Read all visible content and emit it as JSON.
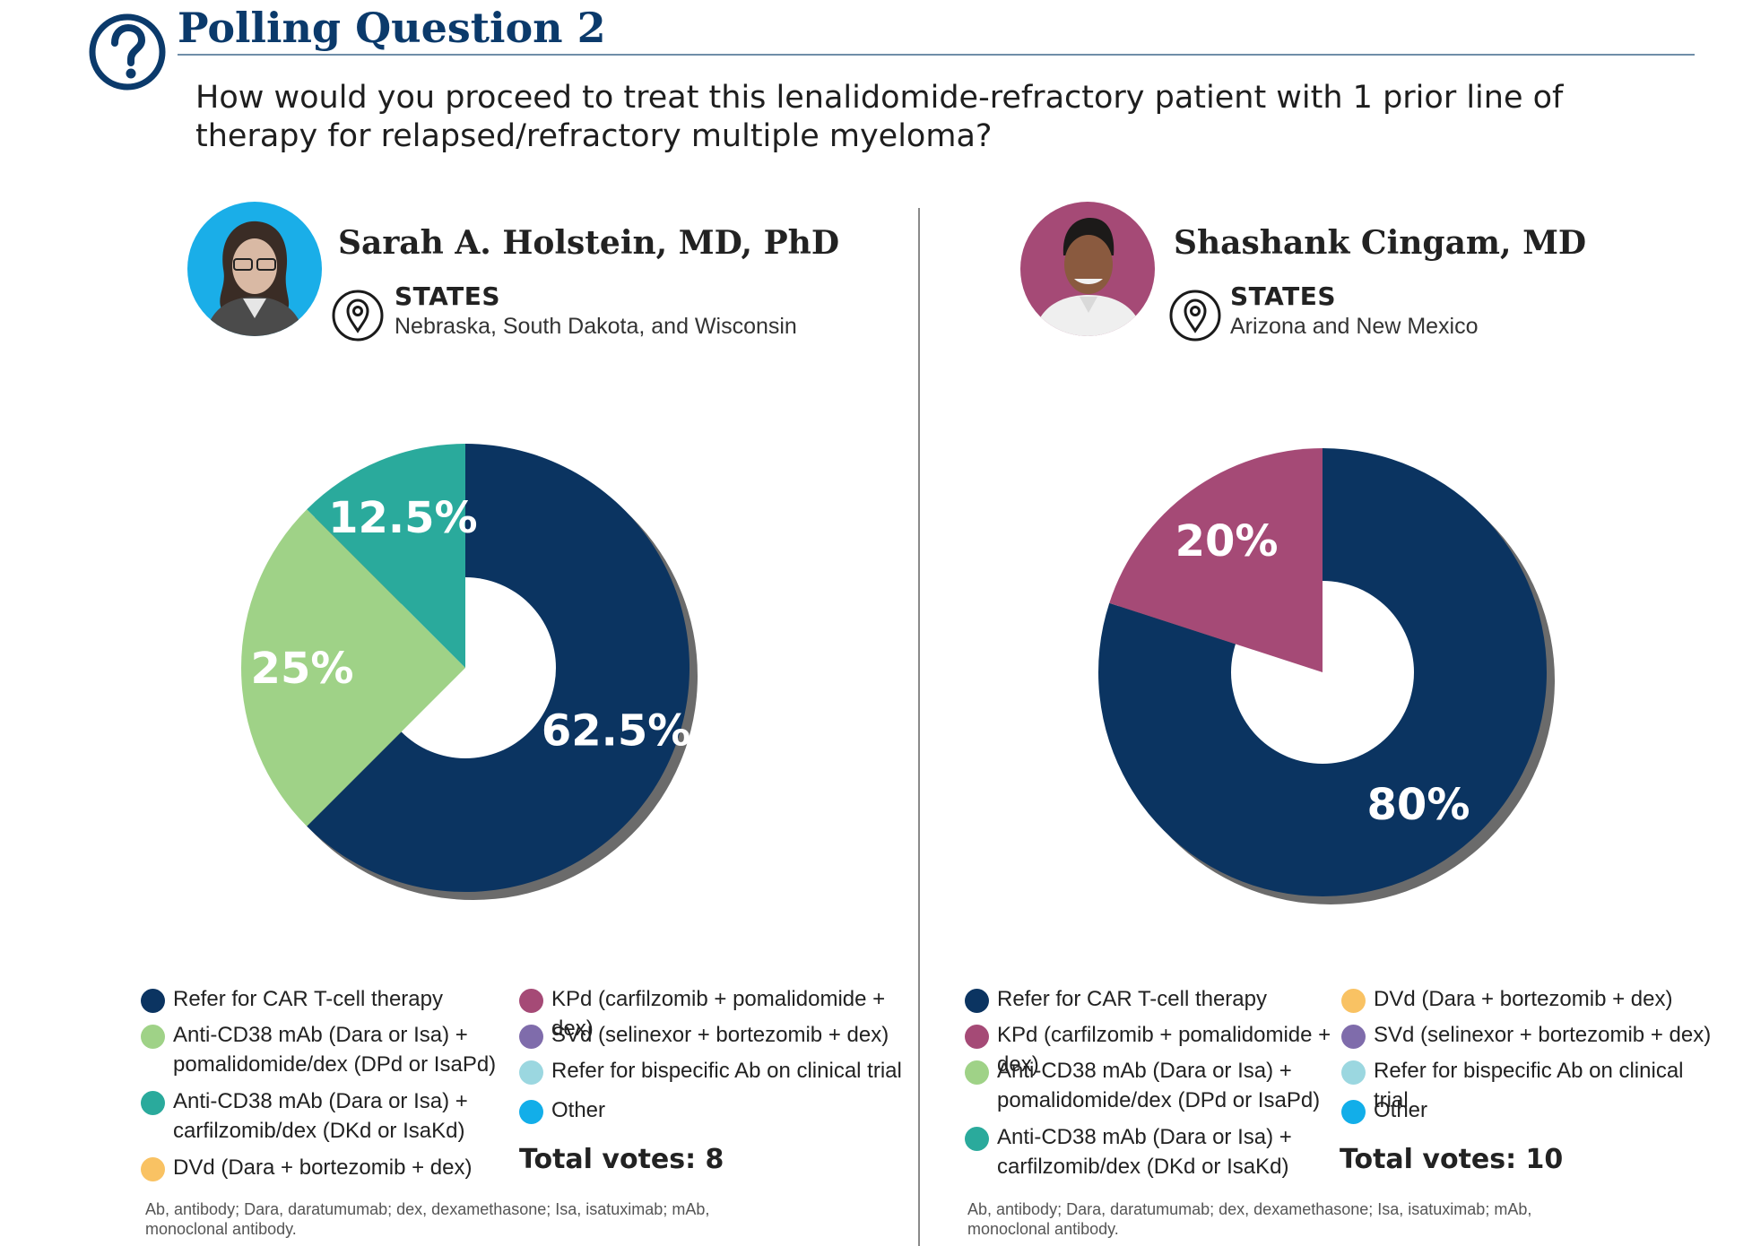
{
  "header": {
    "title": "Polling Question 2",
    "question": "How would you proceed to treat this lenalidomide-refractory patient with 1 prior line of therapy for relapsed/refractory multiple myeloma?"
  },
  "colors": {
    "navy": "#0b3461",
    "light_green": "#9fd287",
    "teal": "#2aaa9c",
    "yellow": "#f9c263",
    "magenta": "#a54a76",
    "purple": "#7f6cab",
    "light_blue": "#9bd7e0",
    "sky": "#12aee9",
    "shadow": "#6b6b6b",
    "title": "#0b3a6b"
  },
  "panels": [
    {
      "name": "Sarah A. Holstein, MD, PhD",
      "states_heading": "STATES",
      "states": "Nebraska, South Dakota, and Wisconsin",
      "avatar_bg": "#1aaee8",
      "total_votes": "Total votes: 8",
      "footnote": "Ab, antibody; Dara, daratumumab; dex, dexamethasone; Isa, isatuximab; mAb, monoclonal antibody.",
      "legend_left": [
        {
          "label": "Refer for CAR T-cell therapy",
          "color": "#0b3461"
        },
        {
          "label": "Anti-CD38 mAb (Dara or Isa) + pomalidomide/dex (DPd or IsaPd)",
          "color": "#9fd287"
        },
        {
          "label": "Anti-CD38 mAb (Dara or Isa) + carfilzomib/dex (DKd or IsaKd)",
          "color": "#2aaa9c"
        },
        {
          "label": "DVd (Dara + bortezomib + dex)",
          "color": "#f9c263"
        }
      ],
      "legend_right": [
        {
          "label": "KPd (carfilzomib + pomalidomide + dex)",
          "color": "#a54a76"
        },
        {
          "label": "SVd (selinexor + bortezomib + dex)",
          "color": "#7f6cab"
        },
        {
          "label": "Refer for bispecific Ab on clinical trial",
          "color": "#9bd7e0"
        },
        {
          "label": "Other",
          "color": "#12aee9"
        }
      ]
    },
    {
      "name": "Shashank Cingam, MD",
      "states_heading": "STATES",
      "states": "Arizona and New Mexico",
      "avatar_bg": "#a54a76",
      "total_votes": "Total votes: 10",
      "footnote": "Ab, antibody; Dara, daratumumab; dex, dexamethasone; Isa, isatuximab; mAb, monoclonal antibody.",
      "legend_left": [
        {
          "label": "Refer for CAR T-cell therapy",
          "color": "#0b3461"
        },
        {
          "label": "KPd (carfilzomib + pomalidomide + dex)",
          "color": "#a54a76"
        },
        {
          "label": "Anti-CD38 mAb (Dara or Isa) + pomalidomide/dex (DPd or IsaPd)",
          "color": "#9fd287"
        },
        {
          "label": "Anti-CD38 mAb (Dara or Isa) + carfilzomib/dex (DKd or IsaKd)",
          "color": "#2aaa9c"
        }
      ],
      "legend_right": [
        {
          "label": "DVd (Dara + bortezomib + dex)",
          "color": "#f9c263"
        },
        {
          "label": "SVd (selinexor + bortezomib + dex)",
          "color": "#7f6cab"
        },
        {
          "label": "Refer for bispecific Ab on clinical trial",
          "color": "#9bd7e0"
        },
        {
          "label": "Other",
          "color": "#12aee9"
        }
      ]
    }
  ],
  "chart_data": [
    {
      "type": "pie",
      "donut": true,
      "slices": [
        {
          "label": "Refer for CAR T-cell therapy",
          "value": 62.5,
          "display": "62.5%",
          "color": "#0b3461"
        },
        {
          "label": "Anti-CD38 mAb (Dara or Isa) + pomalidomide/dex (DPd or IsaPd)",
          "value": 25,
          "display": "25%",
          "color": "#9fd287"
        },
        {
          "label": "Anti-CD38 mAb (Dara or Isa) + carfilzomib/dex (DKd or IsaKd)",
          "value": 12.5,
          "display": "12.5%",
          "color": "#2aaa9c"
        }
      ]
    },
    {
      "type": "pie",
      "donut": true,
      "slices": [
        {
          "label": "Refer for CAR T-cell therapy",
          "value": 80,
          "display": "80%",
          "color": "#0b3461"
        },
        {
          "label": "KPd (carfilzomib + pomalidomide + dex)",
          "value": 20,
          "display": "20%",
          "color": "#a54a76"
        }
      ]
    }
  ]
}
